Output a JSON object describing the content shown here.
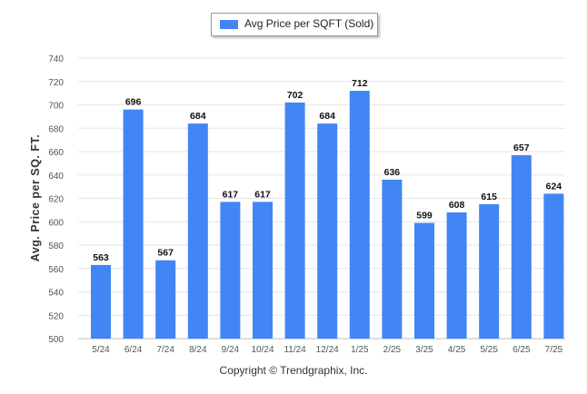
{
  "legend": {
    "label": "Avg Price per SQFT (Sold)",
    "color": "#4285f4"
  },
  "footer": "Copyright © Trendgraphix, Inc.",
  "chart_data": {
    "type": "bar",
    "categories": [
      "5/24",
      "6/24",
      "7/24",
      "8/24",
      "9/24",
      "10/24",
      "11/24",
      "12/24",
      "1/25",
      "2/25",
      "3/25",
      "4/25",
      "5/25",
      "6/25",
      "7/25"
    ],
    "series": [
      {
        "name": "Avg Price per SQFT (Sold)",
        "values": [
          563,
          696,
          567,
          684,
          617,
          617,
          702,
          684,
          712,
          636,
          599,
          608,
          615,
          657,
          624
        ]
      }
    ],
    "ylabel": "Avg. Price per SQ. FT.",
    "ylim": [
      500,
      740
    ],
    "yticks": [
      500,
      520,
      540,
      560,
      580,
      600,
      620,
      640,
      660,
      680,
      700,
      720,
      740
    ],
    "grid": true,
    "data_labels": true,
    "legend_position": "top-center",
    "bar_color": "#4285f4"
  }
}
